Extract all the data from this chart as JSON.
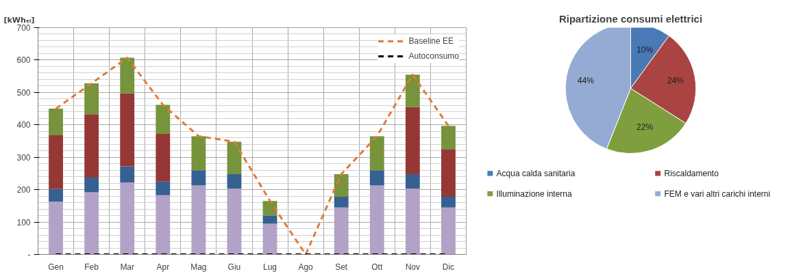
{
  "chart_data": [
    {
      "type": "bar",
      "stacked": true,
      "ylabel": "[kWhₑₗ]",
      "categories": [
        "Gen",
        "Feb",
        "Mar",
        "Apr",
        "Mag",
        "Giu",
        "Lug",
        "Ago",
        "Set",
        "Ott",
        "Nov",
        "Dic"
      ],
      "series": [
        {
          "color": "#b3a2c7",
          "values": [
            163,
            192,
            222,
            183,
            213,
            203,
            95,
            0,
            145,
            213,
            203,
            145
          ]
        },
        {
          "color": "#366092",
          "values": [
            39,
            45,
            50,
            42,
            47,
            45,
            25,
            0,
            33,
            47,
            45,
            33
          ]
        },
        {
          "color": "#953735",
          "values": [
            166,
            196,
            225,
            147,
            0,
            0,
            0,
            0,
            0,
            0,
            207,
            147
          ]
        },
        {
          "color": "#77933c",
          "values": [
            82,
            95,
            110,
            90,
            105,
            100,
            45,
            0,
            70,
            105,
            100,
            72
          ]
        },
        {
          "type": "line",
          "name": "Baseline EE",
          "color": "#e07b39",
          "line_style": "dashed",
          "values": [
            450,
            528,
            607,
            462,
            365,
            348,
            165,
            0,
            248,
            365,
            555,
            397
          ]
        },
        {
          "type": "line",
          "name": "Autoconsumo",
          "color": "#000000",
          "line_style": "dashed",
          "values": [
            0,
            0,
            0,
            0,
            0,
            0,
            0,
            0,
            0,
            0,
            0,
            0
          ]
        }
      ],
      "ylim": [
        0,
        700
      ],
      "yticks": [
        {
          "value": 0,
          "label": "-"
        },
        100,
        200,
        300,
        400,
        500,
        600,
        700
      ],
      "grid": true,
      "legend": "top right"
    },
    {
      "type": "pie",
      "title": "Ripartizione consumi elettrici",
      "categories": [
        "Acqua calda sanitaria",
        "Riscaldamento",
        "Illuminazione interna",
        "FEM e vari altri carichi interni"
      ],
      "values": [
        10,
        24,
        22,
        44
      ],
      "colors": [
        "#4a7ab5",
        "#a94442",
        "#7f9f3e",
        "#95abd4"
      ],
      "value_labels": [
        "10%",
        "24%",
        "22%",
        "44%"
      ],
      "legend": "bottom"
    }
  ]
}
